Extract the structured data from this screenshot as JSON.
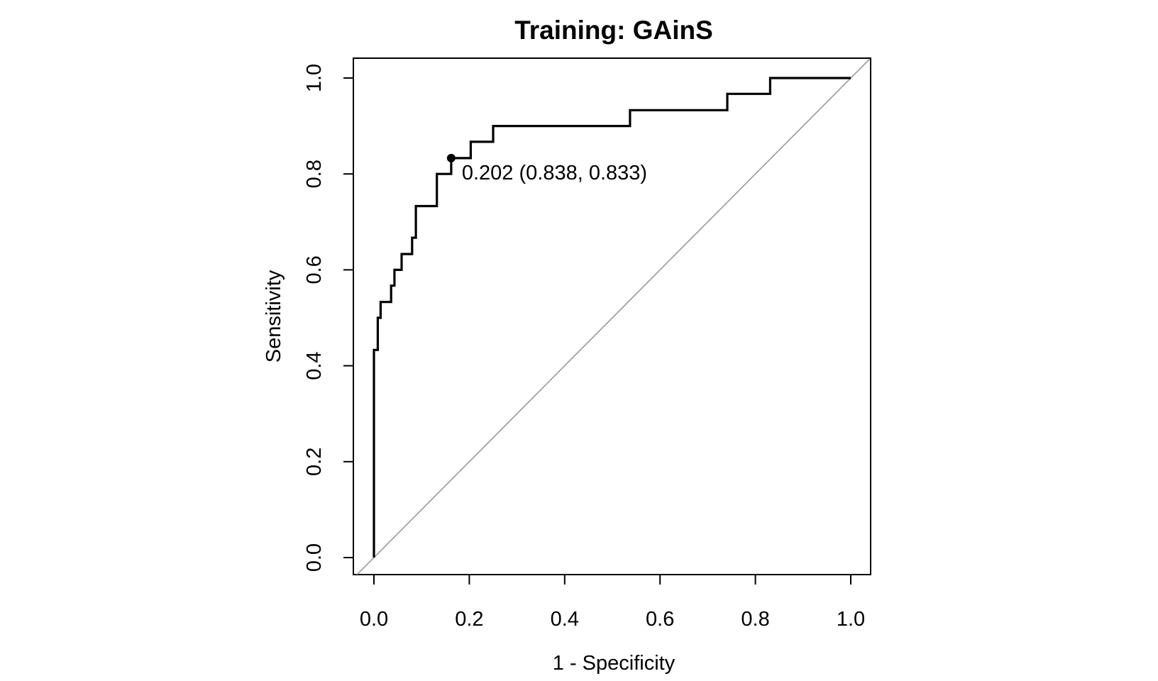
{
  "chart_data": {
    "type": "line",
    "title": "Training: GAinS",
    "xlabel": "1 - Specificity",
    "ylabel": "Sensitivity",
    "xlim": [
      0,
      1
    ],
    "ylim": [
      0,
      1
    ],
    "x_ticks": [
      "0.0",
      "0.2",
      "0.4",
      "0.6",
      "0.8",
      "1.0"
    ],
    "y_ticks": [
      "0.0",
      "0.2",
      "0.4",
      "0.6",
      "0.8",
      "1.0"
    ],
    "grid": false,
    "legend": "none",
    "series": [
      {
        "line_color": "#000000",
        "x": [
          0,
          0,
          0.008,
          0.008,
          0.014,
          0.014,
          0.036,
          0.036,
          0.043,
          0.043,
          0.058,
          0.058,
          0.08,
          0.08,
          0.088,
          0.088,
          0.132,
          0.132,
          0.162,
          0.162,
          0.203,
          0.203,
          0.25,
          0.25,
          0.537,
          0.537,
          0.741,
          0.741,
          0.831,
          0.831,
          1
        ],
        "y": [
          0,
          0.433,
          0.433,
          0.5,
          0.5,
          0.533,
          0.533,
          0.567,
          0.567,
          0.6,
          0.6,
          0.633,
          0.633,
          0.667,
          0.667,
          0.733,
          0.733,
          0.8,
          0.8,
          0.833,
          0.833,
          0.867,
          0.867,
          0.9,
          0.9,
          0.933,
          0.933,
          0.967,
          0.967,
          1,
          1
        ]
      }
    ],
    "reference_line": {
      "x": [
        -0.04,
        1.04
      ],
      "y": [
        -0.04,
        1.04
      ],
      "color": "#999999"
    },
    "marked_point": {
      "x": 0.162,
      "y": 0.833,
      "label": "0.202 (0.838, 0.833)"
    }
  }
}
